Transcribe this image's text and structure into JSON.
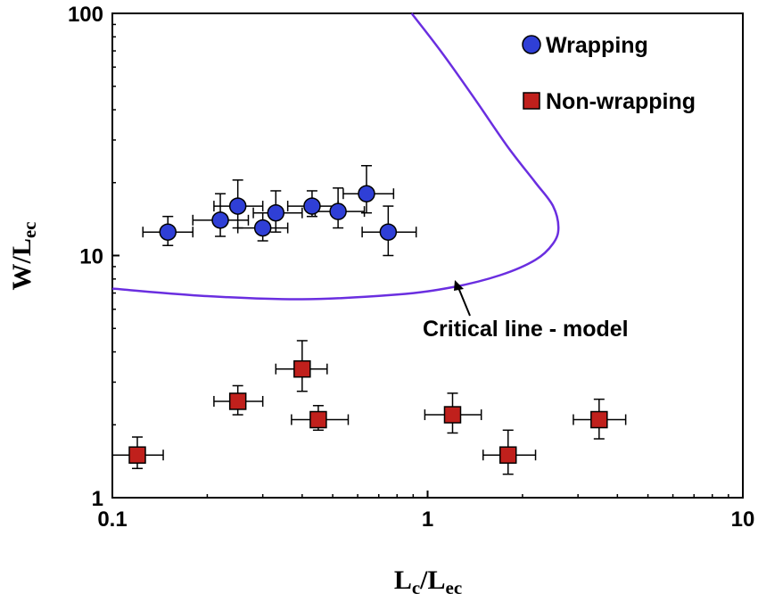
{
  "chart_data": {
    "type": "scatter",
    "xscale": "log",
    "yscale": "log",
    "xlim": [
      0.1,
      10
    ],
    "ylim": [
      1,
      100
    ],
    "xticks": [
      0.1,
      1,
      10
    ],
    "yticks": [
      1,
      10,
      100
    ],
    "xtick_labels": [
      "0.1",
      "1",
      "10"
    ],
    "ytick_labels": [
      "1",
      "10",
      "100"
    ],
    "xlabel": {
      "main": "L",
      "sub1": "c",
      "sep": "/L",
      "sub2": "ec"
    },
    "ylabel": {
      "main": "W/L",
      "sub": "ec"
    },
    "grid": false,
    "legend_position": "top-right",
    "series": [
      {
        "name": "Wrapping",
        "marker": "circle",
        "color": "#2f3fd6",
        "points": [
          {
            "x": 0.15,
            "y": 12.5,
            "xerr": [
              0.125,
              0.18
            ],
            "yerr": [
              11.0,
              14.5
            ]
          },
          {
            "x": 0.22,
            "y": 14.0,
            "xerr": [
              0.18,
              0.27
            ],
            "yerr": [
              12.0,
              18.0
            ]
          },
          {
            "x": 0.25,
            "y": 16.0,
            "xerr": [
              0.21,
              0.3
            ],
            "yerr": [
              13.0,
              20.5
            ]
          },
          {
            "x": 0.3,
            "y": 13.0,
            "xerr": [
              0.25,
              0.36
            ],
            "yerr": [
              11.5,
              15.0
            ]
          },
          {
            "x": 0.33,
            "y": 15.0,
            "xerr": [
              0.28,
              0.4
            ],
            "yerr": [
              12.5,
              18.5
            ]
          },
          {
            "x": 0.43,
            "y": 16.0,
            "xerr": [
              0.36,
              0.52
            ],
            "yerr": [
              14.5,
              18.5
            ]
          },
          {
            "x": 0.52,
            "y": 15.2,
            "xerr": [
              0.44,
              0.63
            ],
            "yerr": [
              13.0,
              19.0
            ]
          },
          {
            "x": 0.64,
            "y": 18.0,
            "xerr": [
              0.54,
              0.78
            ],
            "yerr": [
              15.0,
              23.5
            ]
          },
          {
            "x": 0.75,
            "y": 12.5,
            "xerr": [
              0.62,
              0.92
            ],
            "yerr": [
              10.0,
              16.0
            ]
          }
        ]
      },
      {
        "name": "Non-wrapping",
        "marker": "square",
        "color": "#c0201c",
        "points": [
          {
            "x": 0.12,
            "y": 1.5,
            "xerr": [
              0.1,
              0.145
            ],
            "yerr": [
              1.32,
              1.78
            ]
          },
          {
            "x": 0.25,
            "y": 2.5,
            "xerr": [
              0.21,
              0.3
            ],
            "yerr": [
              2.2,
              2.9
            ]
          },
          {
            "x": 0.4,
            "y": 3.4,
            "xerr": [
              0.33,
              0.48
            ],
            "yerr": [
              2.75,
              4.45
            ]
          },
          {
            "x": 0.45,
            "y": 2.1,
            "xerr": [
              0.37,
              0.56
            ],
            "yerr": [
              1.9,
              2.4
            ]
          },
          {
            "x": 1.2,
            "y": 2.2,
            "xerr": [
              0.98,
              1.48
            ],
            "yerr": [
              1.85,
              2.7
            ]
          },
          {
            "x": 1.8,
            "y": 1.5,
            "xerr": [
              1.5,
              2.2
            ],
            "yerr": [
              1.25,
              1.9
            ]
          },
          {
            "x": 3.5,
            "y": 2.1,
            "xerr": [
              2.9,
              4.25
            ],
            "yerr": [
              1.75,
              2.55
            ]
          }
        ]
      }
    ],
    "model_curve": {
      "color": "#6a2ee0",
      "points": [
        [
          0.1,
          7.3
        ],
        [
          0.2,
          6.8
        ],
        [
          0.4,
          6.6
        ],
        [
          0.8,
          6.9
        ],
        [
          1.2,
          7.4
        ],
        [
          1.7,
          8.3
        ],
        [
          2.2,
          9.6
        ],
        [
          2.5,
          11.2
        ],
        [
          2.6,
          13.0
        ],
        [
          2.5,
          16.0
        ],
        [
          2.2,
          20.0
        ],
        [
          1.8,
          28.0
        ],
        [
          1.4,
          45.0
        ],
        [
          1.1,
          70.0
        ],
        [
          0.89,
          100
        ]
      ]
    },
    "annotation": {
      "text": "Critical line - model",
      "arrow_to": [
        1.3,
        7.6
      ]
    }
  }
}
